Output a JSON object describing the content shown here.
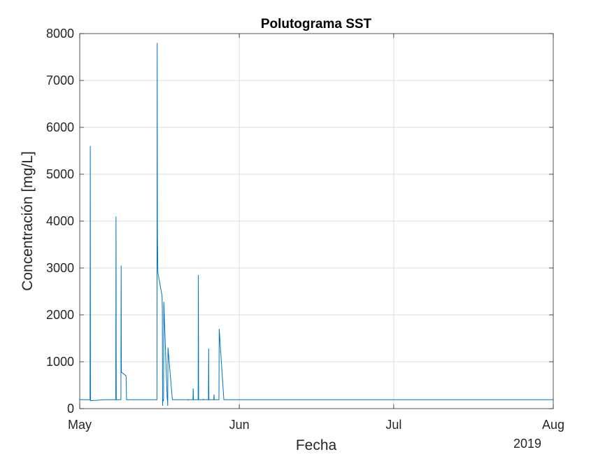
{
  "chart_data": {
    "type": "line",
    "title": "Polutograma SST",
    "xlabel": "Fecha",
    "ylabel": "Concentración [mg/L]",
    "x_year_label": "2019",
    "x_ticks": [
      "May",
      "Jun",
      "Jul",
      "Aug"
    ],
    "x_tick_dates": [
      "2019-05-01",
      "2019-06-01",
      "2019-07-01",
      "2019-08-01"
    ],
    "y_ticks": [
      "0",
      "1000",
      "2000",
      "3000",
      "4000",
      "5000",
      "6000",
      "7000",
      "8000"
    ],
    "xlim": [
      "2019-05-01",
      "2019-08-01"
    ],
    "ylim": [
      0,
      8000
    ],
    "grid": true,
    "line_color": "#0072BD",
    "series": [
      {
        "x": [
          "2019-05-01",
          "2019-05-03",
          "2019-05-03",
          "2019-05-03",
          "2019-05-06",
          "2019-05-08",
          "2019-05-08",
          "2019-05-08",
          "2019-05-09",
          "2019-05-09",
          "2019-05-09",
          "2019-05-10",
          "2019-05-10",
          "2019-05-10",
          "2019-05-10",
          "2019-05-14",
          "2019-05-16",
          "2019-05-16",
          "2019-05-16",
          "2019-05-16",
          "2019-05-16",
          "2019-05-17",
          "2019-05-17",
          "2019-05-17",
          "2019-05-17",
          "2019-05-17",
          "2019-05-17",
          "2019-05-17",
          "2019-05-17",
          "2019-05-18",
          "2019-05-18",
          "2019-05-18",
          "2019-05-18",
          "2019-05-19",
          "2019-05-19",
          "2019-05-19",
          "2019-05-19",
          "2019-05-22",
          "2019-05-22",
          "2019-05-22",
          "2019-05-23",
          "2019-05-23",
          "2019-05-23",
          "2019-05-23",
          "2019-05-24",
          "2019-05-24",
          "2019-05-24",
          "2019-05-24",
          "2019-05-25",
          "2019-05-25",
          "2019-05-25",
          "2019-05-26",
          "2019-05-26",
          "2019-05-26",
          "2019-05-27",
          "2019-05-27",
          "2019-05-27",
          "2019-05-27",
          "2019-05-28",
          "2019-05-28",
          "2019-05-28",
          "2019-05-29",
          "2019-05-29",
          "2019-05-29",
          "2019-06-15",
          "2019-07-15",
          "2019-08-01"
        ],
        "y": [
          190,
          190,
          5600,
          170,
          190,
          190,
          4100,
          190,
          190,
          3050,
          780,
          700,
          500,
          190,
          190,
          190,
          190,
          7800,
          3750,
          3300,
          2900,
          2400,
          2100,
          60,
          190,
          190,
          160,
          190,
          2280,
          190,
          190,
          60,
          1300,
          190,
          190,
          190,
          190,
          190,
          180,
          190,
          190,
          430,
          190,
          190,
          190,
          2850,
          190,
          190,
          190,
          200,
          190,
          190,
          1280,
          190,
          190,
          190,
          300,
          190,
          190,
          190,
          1700,
          190,
          190,
          190,
          190,
          190,
          190
        ]
      }
    ]
  }
}
